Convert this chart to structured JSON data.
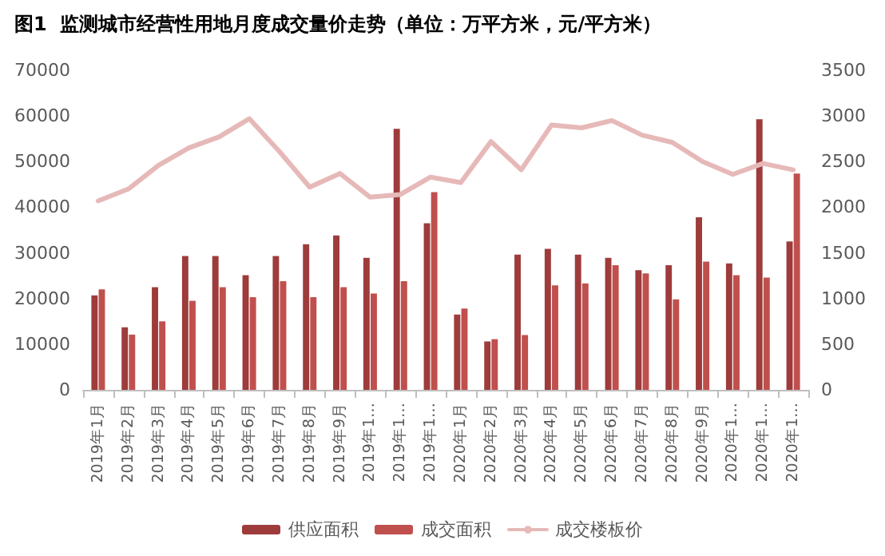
{
  "chart_data": {
    "type": "bar",
    "title": "图1  监测城市经营性用地月度成交量价走势（单位：万平方米，元/平方米）",
    "categories": [
      "2019年1月",
      "2019年2月",
      "2019年3月",
      "2019年4月",
      "2019年5月",
      "2019年6月",
      "2019年7月",
      "2019年8月",
      "2019年9月",
      "2019年1…",
      "2019年1…",
      "2019年1…",
      "2020年1月",
      "2020年2月",
      "2020年3月",
      "2020年4月",
      "2020年5月",
      "2020年6月",
      "2020年7月",
      "2020年8月",
      "2020年9月",
      "2020年1…",
      "2020年1…",
      "2020年1…"
    ],
    "series": [
      {
        "name": "供应面积",
        "color": "#9e3b3b",
        "values": [
          20700,
          13700,
          22500,
          29300,
          29300,
          25100,
          29300,
          31900,
          33800,
          28900,
          57200,
          36500,
          16500,
          10600,
          29600,
          30900,
          29600,
          28900,
          26200,
          27300,
          37800,
          27700,
          59300,
          32500
        ]
      },
      {
        "name": "成交面积",
        "color": "#c0504d",
        "values": [
          22000,
          12100,
          15000,
          19500,
          22500,
          20300,
          23800,
          20300,
          22500,
          21100,
          23800,
          43300,
          17800,
          11100,
          12000,
          22900,
          23300,
          27300,
          25500,
          19800,
          28100,
          25100,
          24600,
          47400
        ]
      },
      {
        "name": "成交楼板价",
        "type": "line",
        "axis": "y2",
        "color": "#e6b9b8",
        "values": [
          2070,
          2200,
          2460,
          2650,
          2770,
          2970,
          2610,
          2220,
          2370,
          2110,
          2140,
          2330,
          2270,
          2720,
          2410,
          2900,
          2870,
          2950,
          2790,
          2710,
          2500,
          2360,
          2480,
          2410
        ]
      }
    ],
    "ylim": [
      0,
      70000
    ],
    "yticks": [
      0,
      10000,
      20000,
      30000,
      40000,
      50000,
      60000,
      70000
    ],
    "y2lim": [
      0,
      3500
    ],
    "y2ticks": [
      0,
      500,
      1000,
      1500,
      2000,
      2500,
      3000,
      3500
    ],
    "grid": false,
    "legend": "bottom",
    "marker": "none",
    "line_style": "solid"
  }
}
